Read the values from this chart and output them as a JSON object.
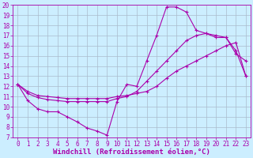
{
  "bg_color": "#cceeff",
  "grid_color": "#aabbcc",
  "line_color": "#aa00aa",
  "xlabel": "Windchill (Refroidissement éolien,°C)",
  "xlim": [
    -0.5,
    23.5
  ],
  "ylim": [
    7,
    20
  ],
  "xticks": [
    0,
    1,
    2,
    3,
    4,
    5,
    6,
    7,
    8,
    9,
    10,
    11,
    12,
    13,
    14,
    15,
    16,
    17,
    18,
    19,
    20,
    21,
    22,
    23
  ],
  "yticks": [
    7,
    8,
    9,
    10,
    11,
    12,
    13,
    14,
    15,
    16,
    17,
    18,
    19,
    20
  ],
  "line1_x": [
    0,
    1,
    2,
    3,
    4,
    5,
    6,
    7,
    8,
    9,
    10,
    11,
    12,
    13,
    14,
    15,
    16,
    17,
    18,
    19,
    20,
    21,
    22,
    23
  ],
  "line1_y": [
    12.2,
    10.6,
    9.8,
    9.5,
    9.5,
    9.0,
    8.5,
    7.9,
    7.6,
    7.2,
    10.5,
    12.2,
    12.0,
    14.5,
    17.0,
    19.8,
    19.8,
    19.3,
    17.5,
    17.2,
    16.8,
    16.8,
    15.2,
    14.5
  ],
  "line2_x": [
    0,
    1,
    2,
    3,
    4,
    5,
    6,
    7,
    8,
    9,
    10,
    11,
    12,
    13,
    14,
    15,
    16,
    17,
    18,
    19,
    20,
    21,
    22,
    23
  ],
  "line2_y": [
    12.2,
    11.5,
    11.1,
    11.0,
    10.9,
    10.8,
    10.8,
    10.8,
    10.8,
    10.8,
    11.0,
    11.1,
    11.3,
    11.5,
    12.0,
    12.8,
    13.5,
    14.0,
    14.5,
    15.0,
    15.5,
    16.0,
    16.3,
    13.0
  ],
  "line3_x": [
    0,
    1,
    2,
    3,
    4,
    5,
    6,
    7,
    8,
    9,
    10,
    11,
    12,
    13,
    14,
    15,
    16,
    17,
    18,
    19,
    20,
    21,
    22,
    23
  ],
  "line3_y": [
    12.2,
    11.3,
    10.9,
    10.7,
    10.6,
    10.5,
    10.5,
    10.5,
    10.5,
    10.5,
    10.8,
    11.0,
    11.5,
    12.5,
    13.5,
    14.5,
    15.5,
    16.5,
    17.0,
    17.2,
    17.0,
    16.8,
    15.5,
    13.0
  ],
  "tick_fontsize": 5.5,
  "xlabel_fontsize": 6.5
}
